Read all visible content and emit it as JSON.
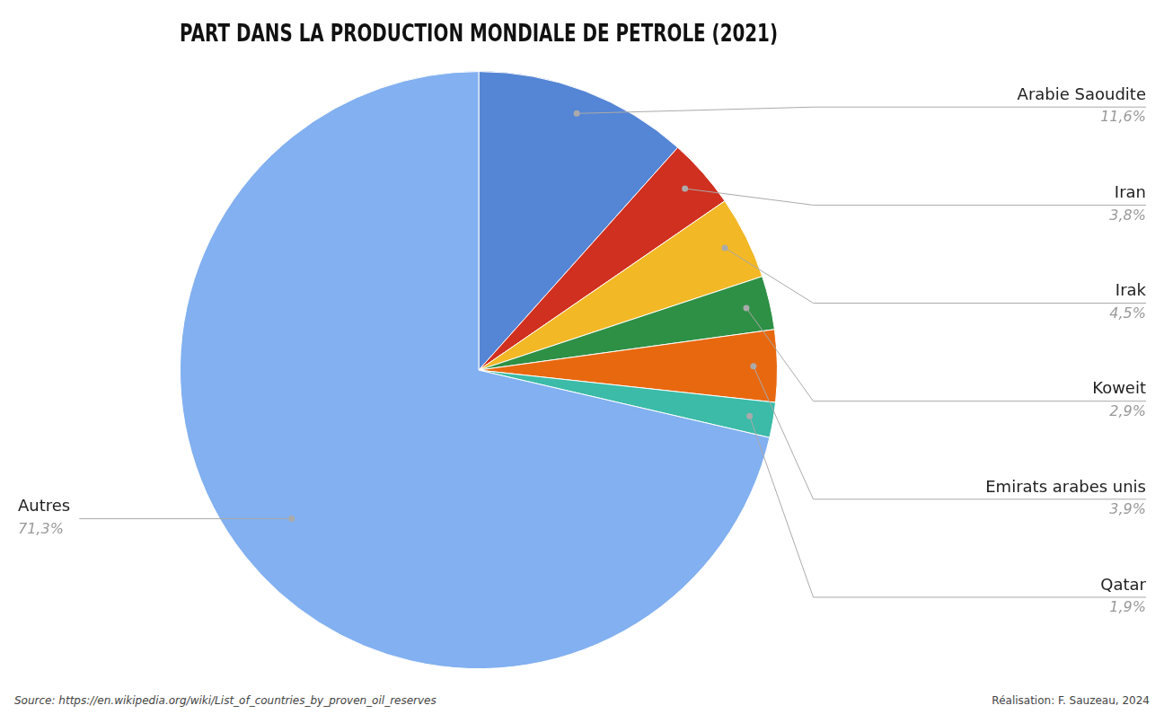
{
  "chart_data": {
    "type": "pie",
    "title": "PART DANS LA PRODUCTION MONDIALE DE PETROLE (2021)",
    "categories": [
      "Arabie Saoudite",
      "Iran",
      "Irak",
      "Koweit",
      "Emirats arabes unis",
      "Qatar",
      "Autres"
    ],
    "values": [
      11.6,
      3.8,
      4.5,
      2.9,
      3.9,
      1.9,
      71.3
    ],
    "value_labels": [
      "11,6%",
      "3,8%",
      "4,5%",
      "2,9%",
      "3,9%",
      "1,9%",
      "71,3%"
    ],
    "colors": [
      "#5585D5",
      "#D03020",
      "#F2B825",
      "#2E9045",
      "#E86810",
      "#3BBBA8",
      "#82B0F0"
    ],
    "data_labels": true,
    "annotations": [
      "Source: https://en.wikipedia.org/wiki/List_of_countries_by_proven_oil_reserves",
      "Réalisation: F. Sauzeau, 2024"
    ]
  }
}
